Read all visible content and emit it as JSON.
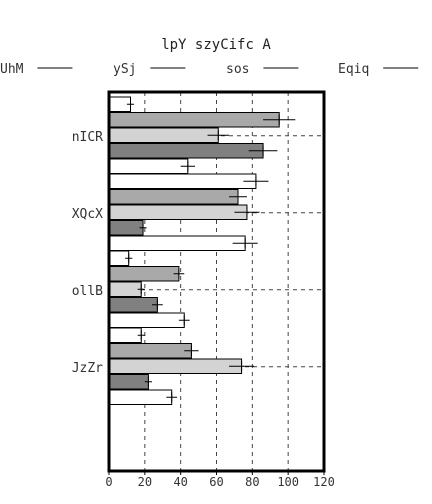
{
  "chart_data": {
    "type": "bar",
    "orientation": "horizontal",
    "title": "lpY szyCifc A",
    "xlabel": "",
    "ylabel": "",
    "xlim": [
      0,
      120
    ],
    "xticks": [
      0,
      20,
      40,
      60,
      80,
      100,
      120
    ],
    "grid": "dashed",
    "legend_position": "top",
    "categories": [
      "nICR",
      "XQcX",
      "ollB",
      "JzZr"
    ],
    "series": [
      {
        "name": "UhM",
        "color": "#ffffff",
        "values": [
          12,
          82,
          11,
          18
        ],
        "errors": [
          2,
          7,
          2,
          2
        ]
      },
      {
        "name": "ySj",
        "color": "#a9a9a9",
        "values": [
          95,
          72,
          39,
          46
        ],
        "errors": [
          9,
          5,
          3,
          4
        ]
      },
      {
        "name": "sos",
        "color": "#d3d3d3",
        "values": [
          61,
          77,
          18,
          74
        ],
        "errors": [
          6,
          7,
          2,
          7
        ]
      },
      {
        "name": "Eqiq",
        "color": "#808080",
        "values": [
          86,
          19,
          27,
          22
        ],
        "errors": [
          8,
          2,
          3,
          2
        ]
      },
      {
        "name": "",
        "color": "#ffffff",
        "values": [
          44,
          76,
          42,
          35
        ],
        "errors": [
          4,
          7,
          3,
          3
        ]
      }
    ]
  }
}
